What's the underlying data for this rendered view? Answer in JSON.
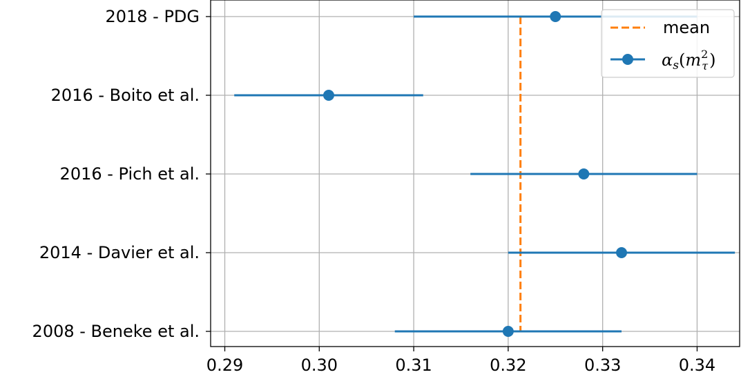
{
  "chart_data": {
    "type": "errorbar",
    "x": {
      "lim": [
        0.2885,
        0.3445
      ],
      "ticks": [
        0.29,
        0.3,
        0.31,
        0.32,
        0.33,
        0.34
      ],
      "tick_labels": [
        "0.29",
        "0.30",
        "0.31",
        "0.32",
        "0.33",
        "0.34"
      ]
    },
    "categories": [
      "2018 - PDG",
      "2016 - Boito et al.",
      "2016 - Pich et al.",
      "2014 - Davier et al.",
      "2008 - Beneke et al."
    ],
    "series": [
      {
        "name": "αs(m²τ)",
        "color": "#1f77b4",
        "values": [
          0.325,
          0.301,
          0.328,
          0.332,
          0.32
        ],
        "err_low": [
          0.31,
          0.291,
          0.316,
          0.32,
          0.308
        ],
        "err_high": [
          0.34,
          0.311,
          0.34,
          0.344,
          0.332
        ]
      }
    ],
    "mean": {
      "name": "mean",
      "value": 0.3213,
      "color": "#ff7f0e",
      "style": "dashed"
    },
    "grid": true,
    "legend": {
      "placement": "upper-right",
      "entries": [
        {
          "label": "mean"
        },
        {
          "label_parts": {
            "alpha": "α",
            "sub_s": "s",
            "open": "(",
            "m": "m",
            "sup": "2",
            "sub": "τ",
            "close": ")"
          }
        }
      ]
    }
  }
}
